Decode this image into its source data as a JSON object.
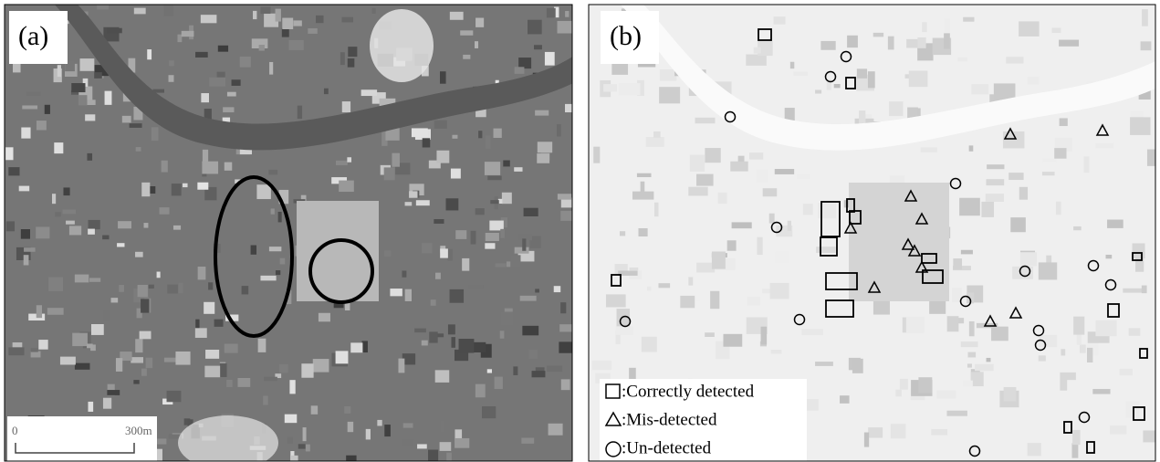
{
  "panels": [
    {
      "label": "(a)",
      "scale_bar": {
        "start": "0",
        "end": "300m"
      }
    },
    {
      "label": "(b)",
      "legend": [
        {
          "label": ":Correctly detected"
        },
        {
          "label": ":Mis-detected"
        },
        {
          "label": ":Un-detected"
        }
      ]
    }
  ]
}
